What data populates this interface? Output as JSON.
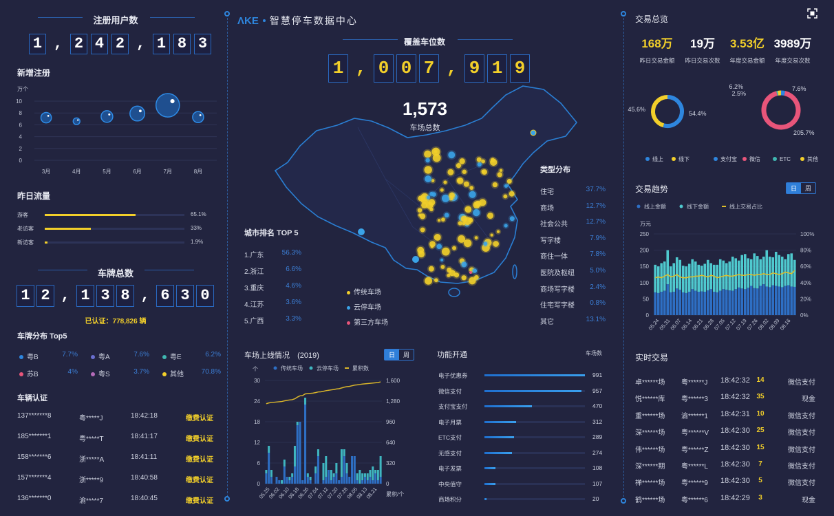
{
  "colors": {
    "background": "#22243f",
    "accent_blue": "#2e86de",
    "yellow": "#f2cf2a",
    "cyan": "#4fd1d9",
    "pink": "#e8557a"
  },
  "left": {
    "registered_users": {
      "title": "注册用户数",
      "value": "1,242,183"
    },
    "new_registrations": {
      "title": "新增注册",
      "chart_data": {
        "type": "scatter",
        "ylabel": "万个",
        "ylim": [
          0,
          10
        ],
        "yticks": [
          0,
          2,
          4,
          6,
          8,
          10
        ],
        "categories": [
          "3月",
          "4月",
          "5月",
          "6月",
          "7月",
          "8月"
        ],
        "values": [
          7.2,
          6.6,
          7.4,
          7.9,
          9.3,
          7.3
        ]
      }
    },
    "yesterday_traffic": {
      "title": "昨日流量",
      "items": [
        {
          "label": "游客",
          "value": 65.1,
          "text": "65.1%"
        },
        {
          "label": "老访客",
          "value": 33,
          "text": "33%"
        },
        {
          "label": "新访客",
          "value": 1.9,
          "text": "1.9%"
        }
      ]
    },
    "plates_total": {
      "title": "车牌总数",
      "value": "12,138,630",
      "verified": "已认证：778,826 辆"
    },
    "plate_top5": {
      "title": "车牌分布 Top5",
      "items": [
        {
          "label": "粤B",
          "value": "7.7%",
          "color": "#2e86de"
        },
        {
          "label": "粤A",
          "value": "7.6%",
          "color": "#6a6fd0"
        },
        {
          "label": "粤E",
          "value": "6.2%",
          "color": "#3fb6b0"
        },
        {
          "label": "苏B",
          "value": "4%",
          "color": "#e8557a"
        },
        {
          "label": "粤S",
          "value": "3.7%",
          "color": "#b46ab8"
        },
        {
          "label": "其他",
          "value": "70.8%",
          "color": "#f2cf2a"
        }
      ]
    },
    "vehicle_auth": {
      "title": "车辆认证",
      "rows": [
        [
          "137*******8",
          "粤*****J",
          "18:42:18",
          "缴费认证"
        ],
        [
          "185*******1",
          "粤*****T",
          "18:41:17",
          "缴费认证"
        ],
        [
          "158*******6",
          "浙*****A",
          "18:41:11",
          "缴费认证"
        ],
        [
          "157*******4",
          "浙*****9",
          "18:40:58",
          "缴费认证"
        ],
        [
          "136*******0",
          "渝*****7",
          "18:40:45",
          "缴费认证"
        ]
      ]
    }
  },
  "center": {
    "logo": "ΛKE",
    "app_title": "智慧停车数据中心",
    "coverage": {
      "title": "覆盖车位数",
      "value": "1,007,919"
    },
    "lots_total": {
      "value": "1,573",
      "label": "车场总数"
    },
    "city_rank": {
      "title": "城市排名 TOP 5",
      "items": [
        {
          "label": "1.广东",
          "value": "56.3%"
        },
        {
          "label": "2.浙江",
          "value": "6.6%"
        },
        {
          "label": "3.重庆",
          "value": "4.6%"
        },
        {
          "label": "4.江苏",
          "value": "3.6%"
        },
        {
          "label": "5.广西",
          "value": "3.3%"
        }
      ]
    },
    "map_legend": [
      {
        "label": "传统车场",
        "color": "#f2cf2a"
      },
      {
        "label": "云停车场",
        "color": "#3aa3e8"
      },
      {
        "label": "第三方车场",
        "color": "#e8557a"
      }
    ],
    "type_dist": {
      "title": "类型分布",
      "items": [
        {
          "label": "住宅",
          "value": "37.7%"
        },
        {
          "label": "商场",
          "value": "12.7%"
        },
        {
          "label": "社会公共",
          "value": "12.7%"
        },
        {
          "label": "写字楼",
          "value": "7.9%"
        },
        {
          "label": "商住一体",
          "value": "7.8%"
        },
        {
          "label": "医院及枢纽",
          "value": "5.0%"
        },
        {
          "label": "商场写字楼",
          "value": "2.4%"
        },
        {
          "label": "住宅写字楼",
          "value": "0.8%"
        },
        {
          "label": "其它",
          "value": "13.1%"
        }
      ]
    },
    "lots_online": {
      "title": "车场上线情况",
      "year": "(2019)",
      "toggle": [
        "日",
        "周"
      ],
      "chart_data": {
        "type": "bar",
        "ylabel_left": "个",
        "ylabel_right": "累积/个",
        "ylim_left": [
          0,
          30
        ],
        "yticks_left": [
          0,
          6,
          12,
          18,
          24,
          30
        ],
        "ylim_right": [
          0,
          1600
        ],
        "yticks_right": [
          "0",
          "320",
          "640",
          "960",
          "1,280",
          "1,600"
        ],
        "xticks": [
          "05.25",
          "06.02",
          "06.10",
          "06.18",
          "06.26",
          "07.04",
          "07.12",
          "07.20",
          "07.28",
          "08.05",
          "08.13",
          "08.21"
        ],
        "series": [
          {
            "name": "传统车场",
            "type": "bar",
            "color": "#2e6fc4",
            "values": [
              3,
              9,
              2,
              0,
              2,
              1,
              0,
              5,
              2,
              1,
              2,
              5,
              17,
              18,
              1,
              23,
              2,
              1,
              0,
              3,
              8,
              0,
              1,
              2,
              4,
              1,
              2,
              3,
              1,
              2,
              8,
              3,
              2,
              8,
              8,
              1,
              0,
              1,
              2,
              1,
              2,
              1,
              3,
              1,
              2
            ]
          },
          {
            "name": "云停车场",
            "type": "bar",
            "color": "#3fb6c0",
            "values": [
              1,
              2,
              2,
              0,
              0,
              0,
              1,
              2,
              0,
              1,
              1,
              6,
              1,
              0,
              0,
              2,
              1,
              1,
              0,
              2,
              2,
              0,
              5,
              6,
              0,
              3,
              1,
              3,
              0,
              8,
              2,
              3,
              0,
              0,
              0,
              2,
              4,
              2,
              1,
              2,
              2,
              4,
              1,
              3,
              6
            ]
          },
          {
            "name": "累积数",
            "type": "line",
            "axis": "right",
            "color": "#d9b52a",
            "values": [
              1240,
              1252,
              1258,
              1262,
              1266,
              1270,
              1274,
              1284,
              1292,
              1298,
              1302,
              1316,
              1342,
              1362,
              1366,
              1392,
              1396,
              1400,
              1404,
              1412,
              1422,
              1424,
              1432,
              1442,
              1448,
              1454,
              1460,
              1468,
              1472,
              1484,
              1496,
              1504,
              1508,
              1518,
              1528,
              1532,
              1538,
              1544,
              1548,
              1552,
              1556,
              1560,
              1564,
              1568,
              1578
            ]
          }
        ]
      }
    },
    "features": {
      "title": "功能开通",
      "unit": "车场数",
      "max": 991,
      "items": [
        {
          "label": "电子优惠券",
          "value": 991
        },
        {
          "label": "微信支付",
          "value": 957
        },
        {
          "label": "支付宝支付",
          "value": 470
        },
        {
          "label": "电子月票",
          "value": 312
        },
        {
          "label": "ETC支付",
          "value": 289
        },
        {
          "label": "无感支付",
          "value": 274
        },
        {
          "label": "电子发票",
          "value": 108
        },
        {
          "label": "中央值守",
          "value": 107
        },
        {
          "label": "商场积分",
          "value": 20
        }
      ]
    }
  },
  "right": {
    "overview": {
      "title": "交易总览",
      "kpis": [
        {
          "value": "168万",
          "label": "昨日交易金额",
          "highlight": true
        },
        {
          "value": "19万",
          "label": "昨日交易次数",
          "highlight": false
        },
        {
          "value": "3.53亿",
          "label": "年度交易金额",
          "highlight": true
        },
        {
          "value": "3989万",
          "label": "年度交易次数",
          "highlight": false
        }
      ]
    },
    "donut_channel": {
      "chart_data": {
        "type": "pie",
        "slices": [
          {
            "name": "线上",
            "value": 54.4,
            "label": "54.4%",
            "color": "#2e86de"
          },
          {
            "name": "线下",
            "value": 45.6,
            "label": "45.6%",
            "color": "#f2cf2a"
          }
        ]
      }
    },
    "donut_payment": {
      "chart_data": {
        "type": "pie",
        "slices": [
          {
            "name": "支付宝",
            "value": 7.6,
            "label": "7.6%",
            "color": "#2e86de"
          },
          {
            "name": "微信",
            "value": 205.7,
            "label": "205.7%",
            "color": "#e8557a"
          },
          {
            "name": "ETC",
            "value": 2.5,
            "label": "2.5%",
            "color": "#3fb6b0"
          },
          {
            "name": "其他",
            "value": 6.2,
            "label": "6.2%",
            "color": "#f2cf2a"
          }
        ]
      }
    },
    "trend": {
      "title": "交易趋势",
      "toggle": [
        "日",
        "周"
      ],
      "chart_data": {
        "type": "bar",
        "ylabel_left": "万元",
        "ylim_left": [
          0,
          250
        ],
        "yticks_left": [
          0,
          50,
          100,
          150,
          200,
          250
        ],
        "ylim_right": [
          0,
          100
        ],
        "yticks_right": [
          "0%",
          "20%",
          "40%",
          "60%",
          "80%",
          "100%"
        ],
        "xticks": [
          "05.24",
          "05.31",
          "06.07",
          "06.14",
          "06.21",
          "06.28",
          "07.05",
          "07.12",
          "07.19",
          "07.26",
          "08.02",
          "08.09",
          "08.16"
        ],
        "series": [
          {
            "name": "线上金额",
            "type": "bar",
            "color": "#2e6fc4",
            "values": [
              70,
              68,
              72,
              75,
              95,
              70,
              72,
              82,
              78,
              70,
              68,
              72,
              80,
              75,
              72,
              73,
              72,
              76,
              80,
              72,
              70,
              75,
              80,
              78,
              76,
              75,
              80,
              85,
              82,
              80,
              84,
              90,
              83,
              82,
              90,
              95,
              88,
              86,
              92,
              90,
              88,
              86,
              90,
              92,
              88,
              87
            ]
          },
          {
            "name": "线下金额",
            "type": "bar",
            "color": "#4fc9cf",
            "values": [
              85,
              82,
              88,
              90,
              105,
              80,
              88,
              96,
              92,
              82,
              82,
              86,
              92,
              90,
              83,
              79,
              86,
              94,
              80,
              83,
              85,
              97,
              88,
              82,
              89,
              105,
              95,
              83,
              103,
              108,
              91,
              82,
              107,
              100,
              82,
              85,
              112,
              94,
              86,
              105,
              97,
              94,
              82,
              96,
              102,
              83
            ]
          },
          {
            "name": "线上交易占比",
            "type": "line",
            "axis": "right",
            "color": "#e0c02a",
            "values": [
              46,
              47,
              46,
              48,
              50,
              47,
              48,
              50,
              47,
              46,
              46,
              47,
              47,
              48,
              48,
              49,
              48,
              47,
              49,
              48,
              46,
              47,
              48,
              49,
              48,
              48,
              49,
              50,
              49,
              49,
              50,
              50,
              49,
              50,
              50,
              51,
              50,
              50,
              52,
              51,
              50,
              51,
              53,
              52,
              51,
              55
            ]
          }
        ]
      }
    },
    "realtime": {
      "title": "实时交易",
      "rows": [
        [
          "卓******场",
          "粤******J",
          "18:42:32",
          "14",
          "微信支付"
        ],
        [
          "悦******库",
          "粤******3",
          "18:42:32",
          "35",
          "现金"
        ],
        [
          "重******场",
          "渝******1",
          "18:42:31",
          "10",
          "微信支付"
        ],
        [
          "深******场",
          "粤******V",
          "18:42:30",
          "25",
          "微信支付"
        ],
        [
          "伟******场",
          "粤******Z",
          "18:42:30",
          "15",
          "微信支付"
        ],
        [
          "深******期",
          "粤******L",
          "18:42:30",
          "7",
          "微信支付"
        ],
        [
          "禅******场",
          "粤******9",
          "18:42:30",
          "5",
          "微信支付"
        ],
        [
          "鹤******场",
          "粤******6",
          "18:42:29",
          "3",
          "现金"
        ]
      ]
    }
  }
}
